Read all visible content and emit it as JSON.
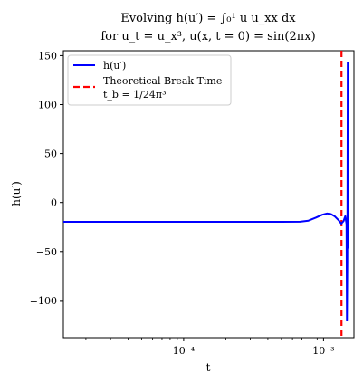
{
  "chart_data": {
    "type": "line",
    "title_line1": "Evolving h(u′) = ∫₀¹ u u_xx dx",
    "title_line2": "for u_t = u_x³, u(x, t = 0) = sin(2πx)",
    "xlabel": "t",
    "ylabel": "h(u′)",
    "xscale": "log",
    "xlim": [
      1.38e-05,
      0.00165
    ],
    "ylim": [
      -138,
      155
    ],
    "x_ticks": [
      {
        "value": 0.0001,
        "label": "10⁻⁴"
      },
      {
        "value": 0.001,
        "label": "10⁻³"
      }
    ],
    "y_ticks": [
      {
        "value": 150,
        "label": "150"
      },
      {
        "value": 100,
        "label": "100"
      },
      {
        "value": 50,
        "label": "50"
      },
      {
        "value": 0,
        "label": "0"
      },
      {
        "value": -50,
        "label": "−50"
      },
      {
        "value": -100,
        "label": "−100"
      }
    ],
    "grid": false,
    "legend_position": "upper-left",
    "series": [
      {
        "name": "h(u′)",
        "color": "#0000ff",
        "style": "solid",
        "points": [
          [
            1.38e-05,
            -19.7
          ],
          [
            5e-05,
            -19.7
          ],
          [
            0.0002,
            -19.7
          ],
          [
            0.0005,
            -19.7
          ],
          [
            0.00068,
            -19.6
          ],
          [
            0.00078,
            -18.5
          ],
          [
            0.00088,
            -15.5
          ],
          [
            0.00098,
            -12.5
          ],
          [
            0.00106,
            -11.2
          ],
          [
            0.00113,
            -11.8
          ],
          [
            0.0012,
            -14.0
          ],
          [
            0.00128,
            -18.0
          ],
          [
            0.00134,
            -21.5
          ],
          [
            0.00139,
            -19.0
          ],
          [
            0.00143,
            -14.0
          ],
          [
            0.00146,
            -22.0
          ],
          [
            0.00147,
            -120.0
          ],
          [
            0.00148,
            -60.0
          ],
          [
            0.00149,
            143.0
          ],
          [
            0.001495,
            130.0
          ],
          [
            0.0015,
            -47.0
          ]
        ]
      },
      {
        "name": "Theoretical Break Time",
        "name_line2": "t_b = 1/24π³",
        "color": "#ff0000",
        "style": "dashed",
        "vertical_x": 0.001344
      }
    ]
  }
}
